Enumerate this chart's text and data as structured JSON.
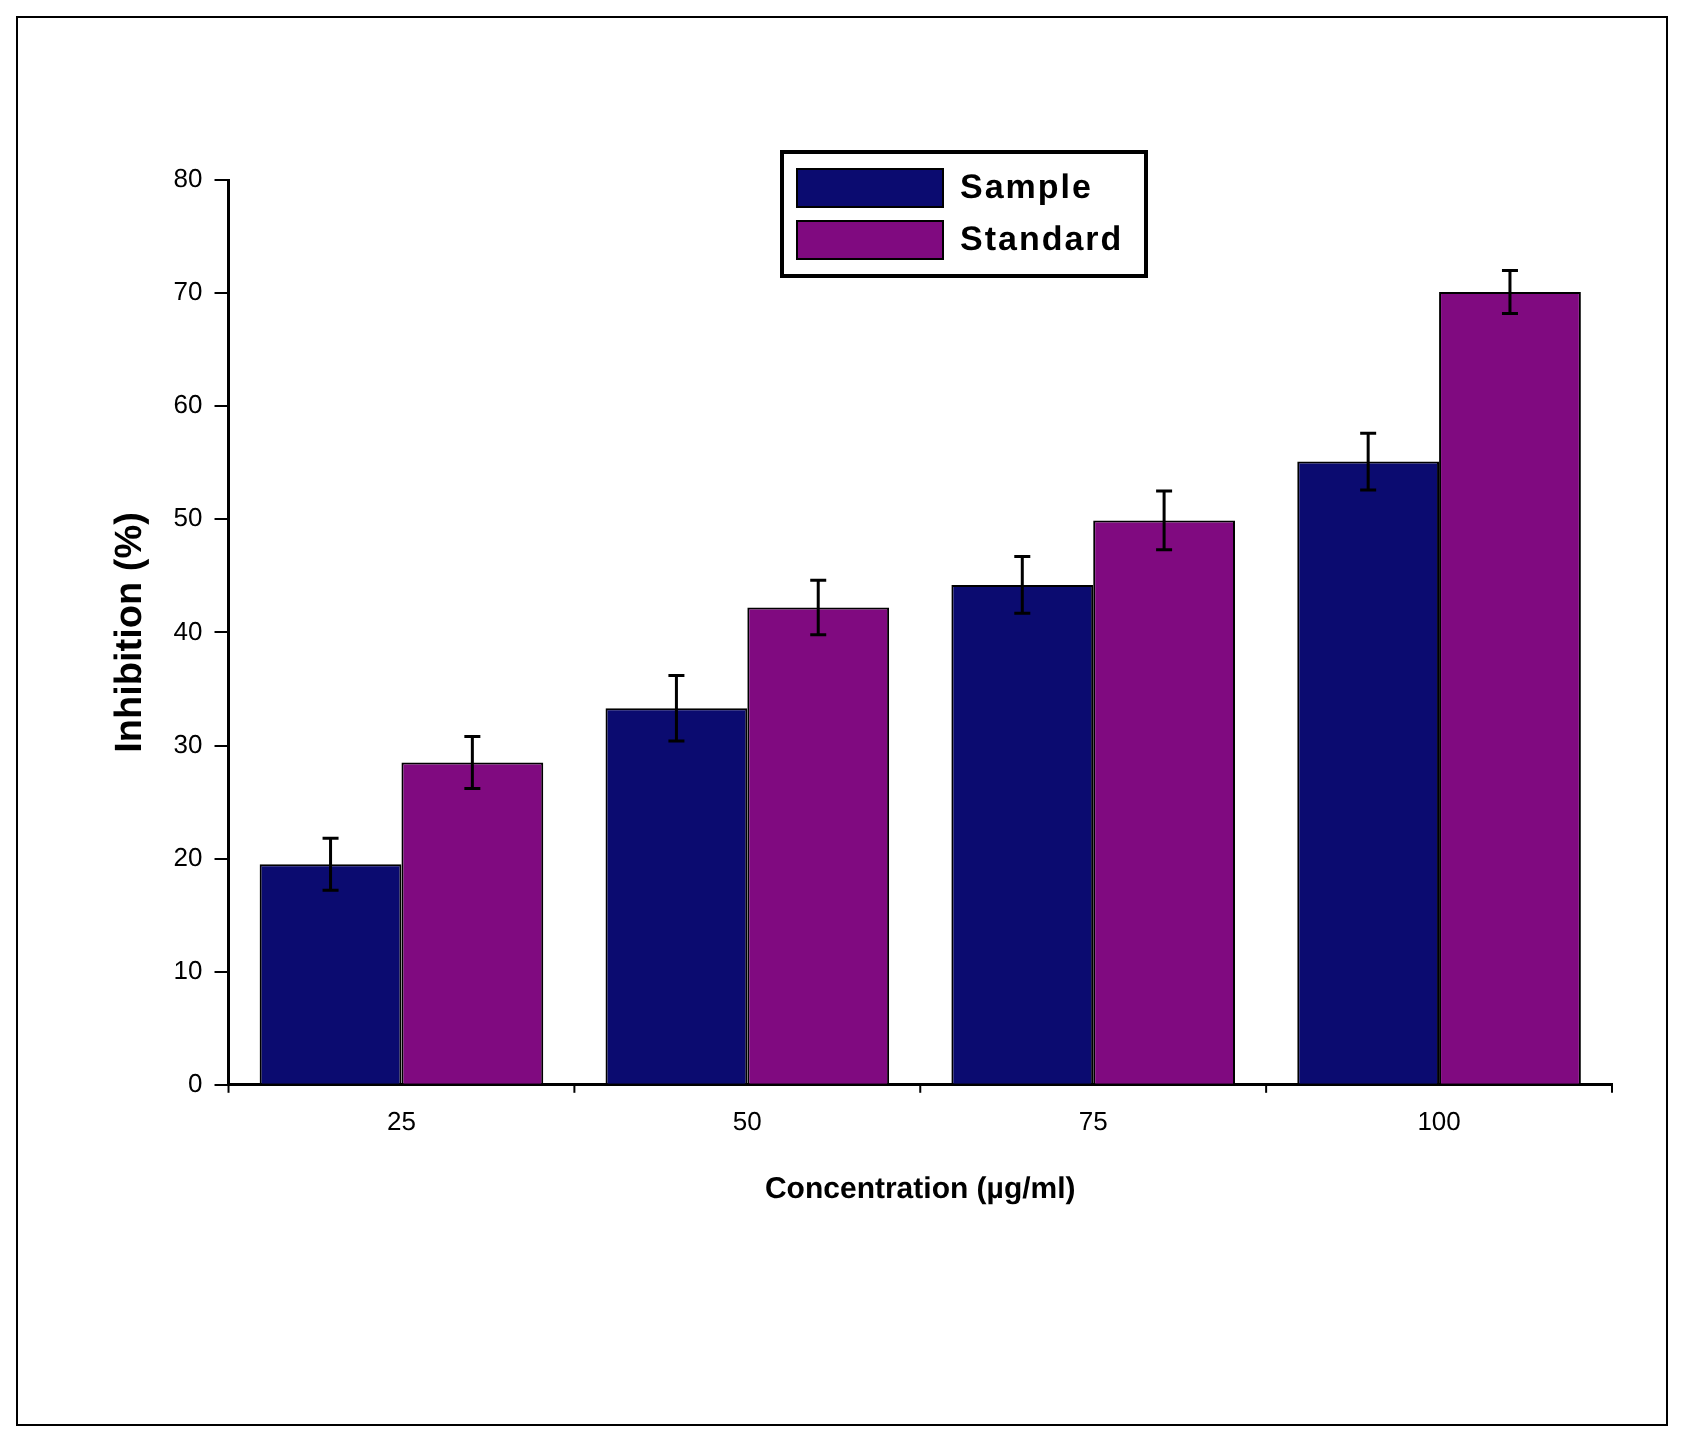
{
  "chart_data": {
    "type": "bar",
    "categories": [
      "25",
      "50",
      "75",
      "100"
    ],
    "xlabel": "Concentration (µg/ml)",
    "ylabel": "Inhibition (%)",
    "ylim": [
      0,
      80
    ],
    "yticks": [
      0,
      10,
      20,
      30,
      40,
      50,
      60,
      70,
      80
    ],
    "grid": false,
    "legend": "top",
    "series": [
      {
        "name": "Sample",
        "color": "#0b0b70",
        "values": [
          19.5,
          33.3,
          44.2,
          55.1
        ],
        "errors": [
          2.3,
          2.9,
          2.5,
          2.5
        ]
      },
      {
        "name": "Standard",
        "color": "#800a80",
        "values": [
          28.5,
          42.2,
          49.9,
          70.1
        ],
        "errors": [
          2.3,
          2.4,
          2.6,
          1.9
        ]
      }
    ]
  }
}
